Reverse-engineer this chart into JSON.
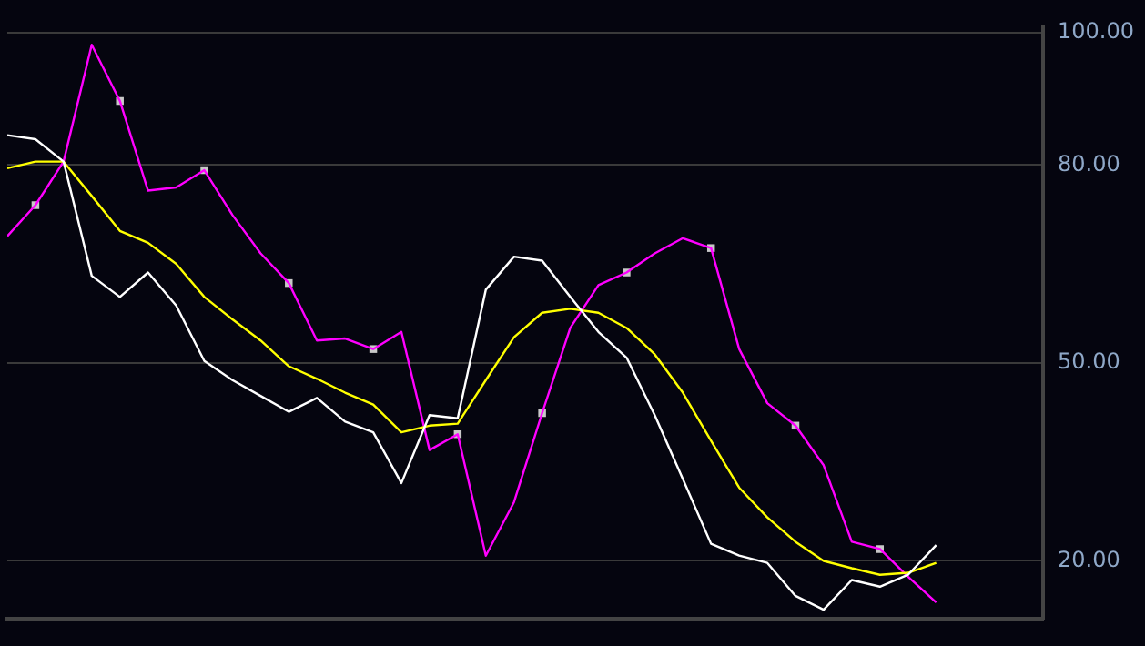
{
  "chart_data": {
    "type": "line",
    "categories": [
      null,
      null,
      null,
      null,
      null,
      null,
      null,
      null,
      null,
      null,
      null,
      null,
      null,
      null,
      null,
      null,
      null,
      null,
      null,
      null,
      null,
      null,
      null,
      null,
      null,
      null,
      null,
      null,
      null,
      null,
      null,
      null,
      null,
      null
    ],
    "ylim": [
      11.3,
      100.8
    ],
    "yticks": [
      {
        "value": 100,
        "label": "100.00"
      },
      {
        "value": 80,
        "label": "80.00"
      },
      {
        "value": 50,
        "label": "50.00"
      },
      {
        "value": 20,
        "label": "20.00"
      }
    ],
    "grid": "y",
    "legend": false,
    "tick_labels": "y",
    "marker": "none",
    "line_style": "solid",
    "series": [
      {
        "color": "#ffffff",
        "values": [
          84.5,
          83.9,
          80.5,
          63.2,
          60.0,
          63.7,
          58.7,
          50.3,
          47.4,
          45.0,
          42.6,
          44.7,
          41.1,
          39.5,
          31.8,
          42.1,
          41.6,
          61.1,
          66.1,
          65.5,
          60.0,
          54.7,
          50.8,
          42.1,
          32.4,
          22.6,
          20.8,
          19.7,
          14.7,
          12.6,
          17.1,
          16.1,
          17.9,
          22.4
        ]
      },
      {
        "color": "#ffff00",
        "values": [
          79.5,
          80.5,
          80.5,
          75.3,
          70.0,
          68.2,
          65.0,
          60.0,
          56.6,
          53.4,
          49.5,
          47.6,
          45.5,
          43.7,
          39.5,
          40.5,
          40.8,
          47.4,
          53.9,
          57.6,
          58.2,
          57.6,
          55.3,
          51.3,
          45.5,
          38.2,
          31.1,
          26.6,
          22.9,
          20.0,
          18.9,
          17.9,
          18.2,
          19.7
        ]
      },
      {
        "color": "#ff00ff",
        "values": [
          69.2,
          73.9,
          80.5,
          98.2,
          89.7,
          76.1,
          76.6,
          79.2,
          72.4,
          66.6,
          62.1,
          53.4,
          53.7,
          52.1,
          54.7,
          36.8,
          39.2,
          20.8,
          28.9,
          42.4,
          55.3,
          61.8,
          63.7,
          66.6,
          68.9,
          67.4,
          52.1,
          43.9,
          40.5,
          34.5,
          22.9,
          21.8,
          17.6,
          13.7
        ]
      },
      {
        "type": "scatter",
        "marker": "square",
        "color": "#c8c8c8",
        "values": [
          null,
          73.9,
          null,
          null,
          89.7,
          null,
          null,
          79.2,
          null,
          null,
          62.1,
          null,
          null,
          52.1,
          null,
          null,
          39.2,
          null,
          null,
          42.4,
          null,
          null,
          63.7,
          null,
          null,
          67.4,
          null,
          null,
          40.5,
          null,
          null,
          21.8,
          null,
          null
        ]
      }
    ]
  }
}
